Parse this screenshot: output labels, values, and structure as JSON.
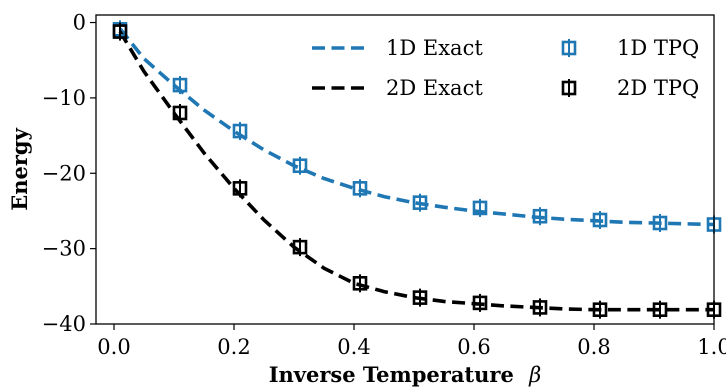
{
  "chart_data": {
    "type": "line",
    "xlabel": "Inverse Temperature",
    "xlabel_symbol": "β",
    "ylabel": "Energy",
    "xlim": [
      -0.03,
      1.0
    ],
    "ylim": [
      -40,
      1
    ],
    "xticks": [
      0.0,
      0.2,
      0.4,
      0.6,
      0.8,
      1.0
    ],
    "xtick_labels": [
      "0.0",
      "0.2",
      "0.4",
      "0.6",
      "0.8",
      "1.0"
    ],
    "yticks": [
      0,
      -10,
      -20,
      -30,
      -40
    ],
    "ytick_labels": [
      "0",
      "−10",
      "−20",
      "−30",
      "−40"
    ],
    "grid": false,
    "legend_position": "top-right",
    "series": [
      {
        "name": "1D Exact",
        "kind": "line",
        "style": "dashed",
        "color": "#1f77b4",
        "x": [
          0.01,
          0.05,
          0.1,
          0.15,
          0.2,
          0.25,
          0.3,
          0.35,
          0.4,
          0.45,
          0.5,
          0.55,
          0.6,
          0.65,
          0.7,
          0.75,
          0.8,
          0.85,
          0.9,
          0.95,
          1.0
        ],
        "y": [
          -0.8,
          -4.8,
          -8.3,
          -11.6,
          -14.4,
          -16.9,
          -19.0,
          -20.7,
          -22.0,
          -23.1,
          -23.9,
          -24.5,
          -25.0,
          -25.4,
          -25.8,
          -26.1,
          -26.3,
          -26.5,
          -26.6,
          -26.7,
          -26.8
        ]
      },
      {
        "name": "2D Exact",
        "kind": "line",
        "style": "dashed",
        "color": "#000000",
        "x": [
          0.01,
          0.05,
          0.1,
          0.15,
          0.2,
          0.25,
          0.3,
          0.35,
          0.4,
          0.45,
          0.5,
          0.55,
          0.6,
          0.65,
          0.7,
          0.75,
          0.8,
          0.85,
          0.9,
          0.95,
          1.0
        ],
        "y": [
          -1.2,
          -6.5,
          -12.0,
          -17.3,
          -22.0,
          -26.2,
          -29.8,
          -32.6,
          -34.6,
          -35.7,
          -36.5,
          -37.0,
          -37.3,
          -37.6,
          -37.8,
          -38.0,
          -38.1,
          -38.1,
          -38.1,
          -38.1,
          -38.1
        ]
      },
      {
        "name": "1D TPQ",
        "kind": "marker",
        "marker": "square-errorbar",
        "color": "#1f77b4",
        "x": [
          0.01,
          0.11,
          0.21,
          0.31,
          0.41,
          0.51,
          0.61,
          0.71,
          0.81,
          0.91,
          1.0
        ],
        "y": [
          -0.9,
          -8.3,
          -14.4,
          -19.0,
          -22.0,
          -23.9,
          -24.6,
          -25.7,
          -26.2,
          -26.6,
          -26.8
        ]
      },
      {
        "name": "2D TPQ",
        "kind": "marker",
        "marker": "square-errorbar",
        "color": "#000000",
        "x": [
          0.01,
          0.11,
          0.21,
          0.31,
          0.41,
          0.51,
          0.61,
          0.71,
          0.81,
          0.91,
          1.0
        ],
        "y": [
          -1.2,
          -12.0,
          -22.0,
          -29.8,
          -34.6,
          -36.5,
          -37.2,
          -37.8,
          -38.1,
          -38.1,
          -38.1
        ]
      }
    ]
  }
}
